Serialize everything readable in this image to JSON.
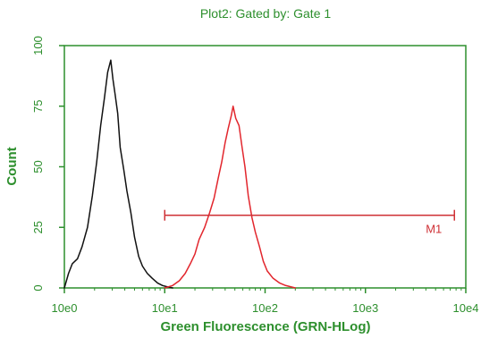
{
  "chart_data": {
    "type": "line",
    "title": "Plot2:  Gated by: Gate 1",
    "xlabel": "Green Fluorescence (GRN-HLog)",
    "ylabel": "Count",
    "x_scale": "log",
    "xlim": [
      1,
      10000
    ],
    "ylim": [
      0,
      100
    ],
    "x_ticks": [
      1,
      10,
      100,
      1000,
      10000
    ],
    "x_tick_labels": [
      "10e0",
      "10e1",
      "10e2",
      "10e3",
      "10e4"
    ],
    "y_ticks": [
      0,
      25,
      50,
      75,
      100
    ],
    "y_tick_labels": [
      "0",
      "25",
      "50",
      "75",
      "100"
    ],
    "grid": false,
    "colors": {
      "axis": "#2d8f2d",
      "text": "#2d8f2d",
      "series_1": "#111111",
      "series_2": "#e2262d",
      "marker": "#cf3035"
    },
    "series": [
      {
        "x": [
          1.0,
          1.1,
          1.2,
          1.35,
          1.5,
          1.7,
          1.9,
          2.1,
          2.3,
          2.5,
          2.7,
          2.9,
          3.05,
          3.2,
          3.4,
          3.6,
          3.9,
          4.2,
          4.6,
          5.0,
          5.5,
          6.0,
          6.7,
          7.5,
          8.5,
          9.5,
          10.5,
          12.0
        ],
        "values": [
          0,
          6,
          10,
          12,
          17,
          25,
          38,
          52,
          67,
          78,
          89,
          94,
          86,
          80,
          72,
          58,
          49,
          40,
          31,
          21,
          13,
          9,
          6,
          4,
          2,
          1,
          0.5,
          0
        ]
      },
      {
        "x": [
          10,
          12,
          14,
          16,
          18,
          20,
          22,
          25,
          28,
          31,
          34,
          37,
          40,
          43,
          46,
          48,
          51,
          55,
          59,
          63,
          68,
          74,
          80,
          88,
          96,
          105,
          120,
          140,
          160,
          200
        ],
        "values": [
          0,
          1,
          3,
          6,
          10,
          14,
          20,
          25,
          31,
          37,
          45,
          52,
          60,
          66,
          71,
          75,
          70,
          67,
          58,
          50,
          38,
          29,
          23,
          17,
          11,
          7,
          4,
          2,
          1,
          0
        ]
      }
    ],
    "annotations": [
      {
        "label": "M1",
        "x_start": 10,
        "x_end": 7700,
        "y": 30
      }
    ]
  }
}
